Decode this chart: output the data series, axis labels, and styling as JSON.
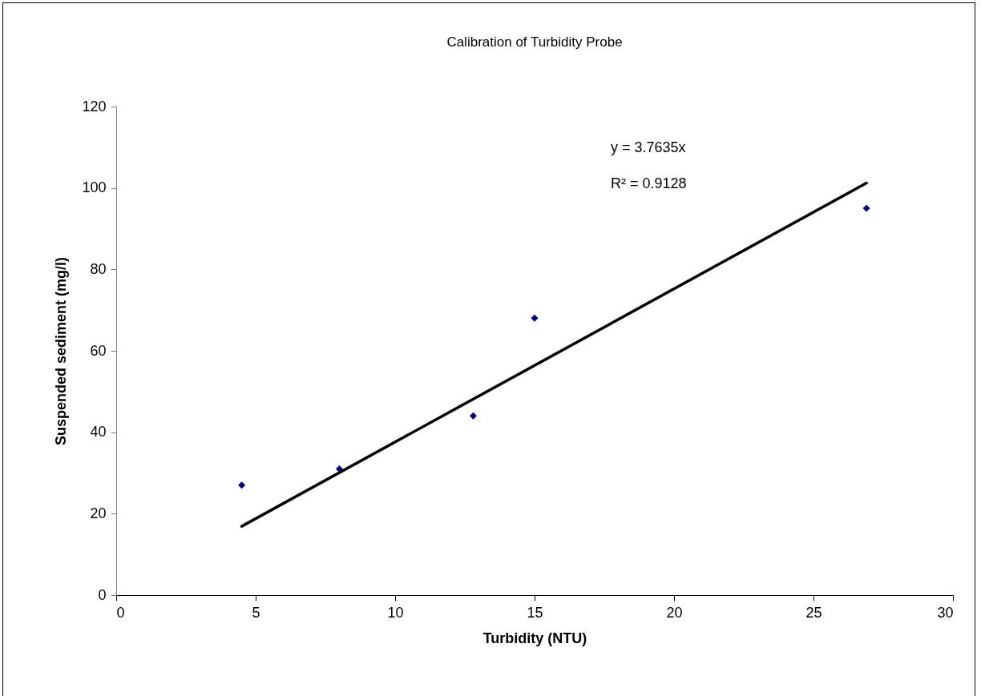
{
  "chart_data": {
    "type": "scatter",
    "title": "Calibration of Turbidity Probe",
    "xlabel": "Turbidity (NTU)",
    "ylabel": "Suspended sediment (mg/l)",
    "xlim": [
      0,
      30
    ],
    "xticks": [
      0,
      5,
      10,
      15,
      20,
      25,
      30
    ],
    "ylim": [
      0,
      120
    ],
    "yticks": [
      0,
      20,
      40,
      60,
      80,
      100,
      120
    ],
    "series": [
      {
        "color": "#000080",
        "marker": "diamond",
        "x": [
          4.5,
          8.0,
          12.8,
          15.0,
          26.9
        ],
        "values": [
          27,
          31,
          44,
          68,
          95
        ]
      },
      {
        "type": "line",
        "color": "#000000",
        "line_style": "solid",
        "x": [
          4.5,
          26.9
        ],
        "values": [
          16.9,
          101.2
        ]
      }
    ],
    "annotations": [
      "y = 3.7635x",
      "R² = 0.9128"
    ]
  }
}
